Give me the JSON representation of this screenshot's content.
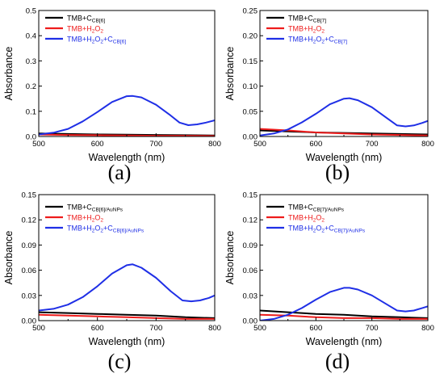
{
  "colors": {
    "black": "#000000",
    "red": "#ee1c1c",
    "blue": "#1f2fe6"
  },
  "chart_data": [
    {
      "type": "line",
      "panel_label": "(a)",
      "xlabel": "Wavelength (nm)",
      "ylabel": "Absorbance",
      "xlim": [
        500,
        800
      ],
      "ylim": [
        0,
        0.5
      ],
      "xticks": [
        "500",
        "600",
        "700",
        "800"
      ],
      "yticks": [
        "0.0",
        "0.1",
        "0.2",
        "0.3",
        "0.4",
        "0.5"
      ],
      "legend_position": "top-left",
      "series": [
        {
          "name": "TMB+C",
          "sub": "CB[6]",
          "color": "#000000",
          "points": [
            [
              500,
              0.012
            ],
            [
              550,
              0.01
            ],
            [
              600,
              0.008
            ],
            [
              650,
              0.007
            ],
            [
              700,
              0.006
            ],
            [
              750,
              0.005
            ],
            [
              800,
              0.004
            ]
          ]
        },
        {
          "name": "TMB+H",
          "sub": "2",
          "tail": "O",
          "sub2": "2",
          "color": "#ee1c1c",
          "points": [
            [
              500,
              0.008
            ],
            [
              550,
              0.006
            ],
            [
              600,
              0.005
            ],
            [
              650,
              0.004
            ],
            [
              700,
              0.003
            ],
            [
              750,
              0.003
            ],
            [
              800,
              0.002
            ]
          ]
        },
        {
          "name": "TMB+H",
          "sub": "2",
          "tail": "O",
          "sub2": "2",
          "tail2": "+C",
          "sub3": "CB[6]",
          "color": "#1f2fe6",
          "points": [
            [
              500,
              0.008
            ],
            [
              525,
              0.015
            ],
            [
              550,
              0.03
            ],
            [
              575,
              0.06
            ],
            [
              600,
              0.097
            ],
            [
              625,
              0.137
            ],
            [
              650,
              0.16
            ],
            [
              660,
              0.161
            ],
            [
              675,
              0.155
            ],
            [
              700,
              0.126
            ],
            [
              725,
              0.083
            ],
            [
              740,
              0.055
            ],
            [
              755,
              0.045
            ],
            [
              770,
              0.048
            ],
            [
              785,
              0.055
            ],
            [
              800,
              0.064
            ]
          ]
        }
      ]
    },
    {
      "type": "line",
      "panel_label": "(b)",
      "xlabel": "Wavelength (nm)",
      "ylabel": "Absorbance",
      "xlim": [
        500,
        800
      ],
      "ylim": [
        0,
        0.25
      ],
      "xticks": [
        "500",
        "600",
        "700",
        "800"
      ],
      "yticks": [
        "0.00",
        "0.05",
        "0.10",
        "0.15",
        "0.20",
        "0.25"
      ],
      "legend_position": "top-left",
      "series": [
        {
          "name": "TMB+C",
          "sub": "CB[7]",
          "color": "#000000",
          "points": [
            [
              500,
              0.012
            ],
            [
              550,
              0.01
            ],
            [
              600,
              0.008
            ],
            [
              650,
              0.007
            ],
            [
              700,
              0.006
            ],
            [
              750,
              0.005
            ],
            [
              800,
              0.004
            ]
          ]
        },
        {
          "name": "TMB+H",
          "sub": "2",
          "tail": "O",
          "sub2": "2",
          "color": "#ee1c1c",
          "points": [
            [
              500,
              0.015
            ],
            [
              550,
              0.012
            ],
            [
              600,
              0.008
            ],
            [
              650,
              0.006
            ],
            [
              700,
              0.004
            ],
            [
              750,
              0.003
            ],
            [
              800,
              0.002
            ]
          ]
        },
        {
          "name": "TMB+H",
          "sub": "2",
          "tail": "O",
          "sub2": "2",
          "tail2": "+C",
          "sub3": "CB[7]",
          "color": "#1f2fe6",
          "points": [
            [
              500,
              0.002
            ],
            [
              525,
              0.006
            ],
            [
              550,
              0.014
            ],
            [
              575,
              0.028
            ],
            [
              600,
              0.045
            ],
            [
              625,
              0.064
            ],
            [
              650,
              0.075
            ],
            [
              660,
              0.076
            ],
            [
              675,
              0.072
            ],
            [
              700,
              0.058
            ],
            [
              725,
              0.038
            ],
            [
              745,
              0.022
            ],
            [
              760,
              0.02
            ],
            [
              775,
              0.022
            ],
            [
              790,
              0.027
            ],
            [
              800,
              0.031
            ]
          ]
        }
      ]
    },
    {
      "type": "line",
      "panel_label": "(c)",
      "xlabel": "Wavelength (nm)",
      "ylabel": "Absorbance",
      "xlim": [
        500,
        800
      ],
      "ylim": [
        0,
        0.15
      ],
      "xticks": [
        "500",
        "600",
        "700",
        "800"
      ],
      "yticks": [
        "0.00",
        "0.03",
        "0.06",
        "0.09",
        "0.12",
        "0.15"
      ],
      "legend_position": "top-left",
      "series": [
        {
          "name": "TMB+C",
          "sub": "CB[6]/AuNPs",
          "color": "#000000",
          "points": [
            [
              500,
              0.01
            ],
            [
              550,
              0.009
            ],
            [
              600,
              0.008
            ],
            [
              650,
              0.007
            ],
            [
              700,
              0.006
            ],
            [
              750,
              0.004
            ],
            [
              800,
              0.003
            ]
          ]
        },
        {
          "name": "TMB+H",
          "sub": "2",
          "tail": "O",
          "sub2": "2",
          "color": "#ee1c1c",
          "points": [
            [
              500,
              0.007
            ],
            [
              550,
              0.006
            ],
            [
              600,
              0.005
            ],
            [
              650,
              0.004
            ],
            [
              700,
              0.003
            ],
            [
              750,
              0.002
            ],
            [
              800,
              0.002
            ]
          ]
        },
        {
          "name": "TMB+H",
          "sub": "2",
          "tail": "O",
          "sub2": "2",
          "tail2": "+C",
          "sub3": "CB[6]/AuNPs",
          "color": "#1f2fe6",
          "points": [
            [
              500,
              0.012
            ],
            [
              525,
              0.014
            ],
            [
              550,
              0.019
            ],
            [
              575,
              0.028
            ],
            [
              600,
              0.041
            ],
            [
              625,
              0.056
            ],
            [
              650,
              0.066
            ],
            [
              660,
              0.067
            ],
            [
              675,
              0.063
            ],
            [
              700,
              0.051
            ],
            [
              725,
              0.035
            ],
            [
              745,
              0.024
            ],
            [
              760,
              0.023
            ],
            [
              775,
              0.024
            ],
            [
              790,
              0.027
            ],
            [
              800,
              0.03
            ]
          ]
        }
      ]
    },
    {
      "type": "line",
      "panel_label": "(d)",
      "xlabel": "Wavelength (nm)",
      "ylabel": "Absorbance",
      "xlim": [
        500,
        800
      ],
      "ylim": [
        0,
        0.15
      ],
      "xticks": [
        "500",
        "600",
        "700",
        "800"
      ],
      "yticks": [
        "0.00",
        "0.03",
        "0.06",
        "0.09",
        "0.12",
        "0.15"
      ],
      "legend_position": "top-left",
      "series": [
        {
          "name": "TMB+C",
          "sub": "CB[7]/AuNPs",
          "color": "#000000",
          "points": [
            [
              500,
              0.012
            ],
            [
              550,
              0.01
            ],
            [
              600,
              0.008
            ],
            [
              650,
              0.007
            ],
            [
              700,
              0.005
            ],
            [
              750,
              0.004
            ],
            [
              800,
              0.003
            ]
          ]
        },
        {
          "name": "TMB+H",
          "sub": "2",
          "tail": "O",
          "sub2": "2",
          "color": "#ee1c1c",
          "points": [
            [
              500,
              0.007
            ],
            [
              550,
              0.006
            ],
            [
              600,
              0.004
            ],
            [
              650,
              0.003
            ],
            [
              700,
              0.003
            ],
            [
              750,
              0.002
            ],
            [
              800,
              0.002
            ]
          ]
        },
        {
          "name": "TMB+H",
          "sub": "2",
          "tail": "O",
          "sub2": "2",
          "tail2": "+C",
          "sub3": "CB[7]/AuNPs",
          "color": "#1f2fe6",
          "points": [
            [
              500,
              0.0
            ],
            [
              525,
              0.002
            ],
            [
              550,
              0.007
            ],
            [
              575,
              0.015
            ],
            [
              600,
              0.025
            ],
            [
              625,
              0.034
            ],
            [
              650,
              0.039
            ],
            [
              660,
              0.039
            ],
            [
              675,
              0.037
            ],
            [
              700,
              0.03
            ],
            [
              725,
              0.02
            ],
            [
              745,
              0.012
            ],
            [
              760,
              0.011
            ],
            [
              775,
              0.012
            ],
            [
              790,
              0.015
            ],
            [
              800,
              0.017
            ]
          ]
        }
      ]
    }
  ]
}
